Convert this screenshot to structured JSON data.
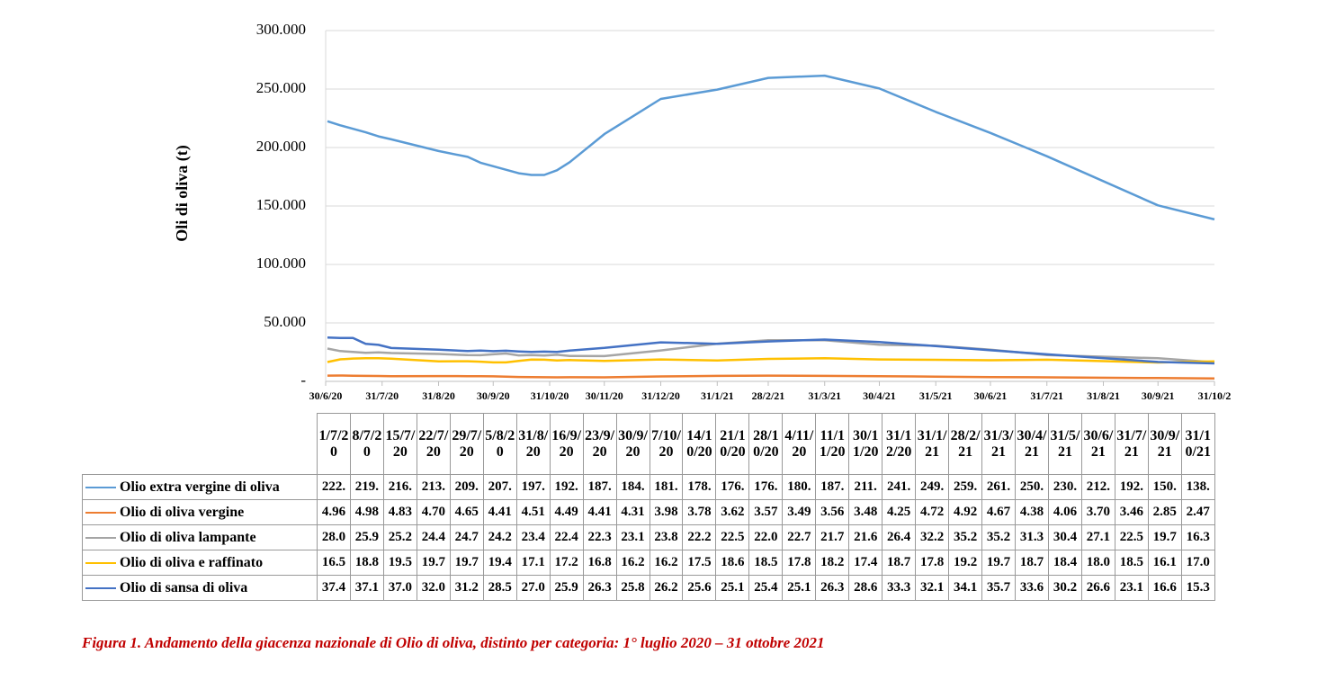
{
  "chart_data": {
    "type": "line",
    "caption": "Figura 1. Andamento della giacenza nazionale di Olio di oliva, distinto per categoria: 1° luglio 2020 – 31 ottobre 2021",
    "ylabel": "Oli di oliva (t)",
    "categories": [
      "1/7/20",
      "8/7/20",
      "15/7/20",
      "22/7/20",
      "29/7/20",
      "5/8/20",
      "31/8/20",
      "16/9/20",
      "23/9/20",
      "30/9/20",
      "7/10/20",
      "14/10/20",
      "21/10/20",
      "28/10/20",
      "4/11/20",
      "11/11/20",
      "30/11/20",
      "31/12/20",
      "31/1/21",
      "28/2/21",
      "31/3/21",
      "30/4/21",
      "31/5/21",
      "30/6/21",
      "31/7/21",
      "30/9/21",
      "31/10/21"
    ],
    "xlim": [
      "2020-06-30",
      "2021-10-31"
    ],
    "xticks": [
      {
        "value": "2020-06-30",
        "label": "30/6/20"
      },
      {
        "value": "2020-07-31",
        "label": "31/7/20"
      },
      {
        "value": "2020-08-31",
        "label": "31/8/20"
      },
      {
        "value": "2020-09-30",
        "label": "30/9/20"
      },
      {
        "value": "2020-10-31",
        "label": "31/10/20"
      },
      {
        "value": "2020-11-30",
        "label": "30/11/20"
      },
      {
        "value": "2020-12-31",
        "label": "31/12/20"
      },
      {
        "value": "2021-01-31",
        "label": "31/1/21"
      },
      {
        "value": "2021-02-28",
        "label": "28/2/21"
      },
      {
        "value": "2021-03-31",
        "label": "31/3/21"
      },
      {
        "value": "2021-04-30",
        "label": "30/4/21"
      },
      {
        "value": "2021-05-31",
        "label": "31/5/21"
      },
      {
        "value": "2021-06-30",
        "label": "30/6/21"
      },
      {
        "value": "2021-07-31",
        "label": "31/7/21"
      },
      {
        "value": "2021-08-31",
        "label": "31/8/21"
      },
      {
        "value": "2021-09-30",
        "label": "30/9/21"
      },
      {
        "value": "2021-10-31",
        "label": "31/10/2"
      }
    ],
    "ylim": [
      0,
      300000
    ],
    "yticks": [
      {
        "value": 0,
        "label": "-"
      },
      {
        "value": 50000,
        "label": "50.000"
      },
      {
        "value": 100000,
        "label": "100.000"
      },
      {
        "value": 150000,
        "label": "150.000"
      },
      {
        "value": 200000,
        "label": "200.000"
      },
      {
        "value": 250000,
        "label": "250.000"
      },
      {
        "value": 300000,
        "label": "300.000"
      }
    ],
    "grid": true,
    "series": [
      {
        "name": "Olio extra vergine di oliva",
        "color": "#5b9bd5",
        "values": [
          222500,
          219000,
          216000,
          213000,
          209500,
          207000,
          197000,
          192000,
          187000,
          184000,
          181000,
          178000,
          176500,
          176500,
          180500,
          187500,
          211500,
          241500,
          249500,
          259500,
          261500,
          250500,
          230500,
          212500,
          192500,
          150500,
          138500
        ],
        "value_labels": [
          "222.",
          "219.",
          "216.",
          "213.",
          "209.",
          "207.",
          "197.",
          "192.",
          "187.",
          "184.",
          "181.",
          "178.",
          "176.",
          "176.",
          "180.",
          "187.",
          "211.",
          "241.",
          "249.",
          "259.",
          "261.",
          "250.",
          "230.",
          "212.",
          "192.",
          "150.",
          "138."
        ]
      },
      {
        "name": "Olio di oliva vergine",
        "color": "#ed7d31",
        "values": [
          4960,
          4980,
          4830,
          4700,
          4650,
          4410,
          4510,
          4490,
          4410,
          4310,
          3980,
          3780,
          3620,
          3570,
          3490,
          3560,
          3480,
          4250,
          4720,
          4920,
          4670,
          4380,
          4060,
          3700,
          3460,
          2850,
          2470
        ],
        "value_labels": [
          "4.96",
          "4.98",
          "4.83",
          "4.70",
          "4.65",
          "4.41",
          "4.51",
          "4.49",
          "4.41",
          "4.31",
          "3.98",
          "3.78",
          "3.62",
          "3.57",
          "3.49",
          "3.56",
          "3.48",
          "4.25",
          "4.72",
          "4.92",
          "4.67",
          "4.38",
          "4.06",
          "3.70",
          "3.46",
          "2.85",
          "2.47"
        ]
      },
      {
        "name": "Olio di oliva lampante",
        "color": "#a5a5a5",
        "values": [
          28050,
          25950,
          25250,
          24450,
          24750,
          24250,
          23450,
          22450,
          22350,
          23150,
          23850,
          22250,
          22550,
          22050,
          22750,
          21750,
          21650,
          26450,
          32250,
          35250,
          35250,
          31350,
          30450,
          27150,
          22550,
          19750,
          16350
        ],
        "value_labels": [
          "28.0",
          "25.9",
          "25.2",
          "24.4",
          "24.7",
          "24.2",
          "23.4",
          "22.4",
          "22.3",
          "23.1",
          "23.8",
          "22.2",
          "22.5",
          "22.0",
          "22.7",
          "21.7",
          "21.6",
          "26.4",
          "32.2",
          "35.2",
          "35.2",
          "31.3",
          "30.4",
          "27.1",
          "22.5",
          "19.7",
          "16.3"
        ]
      },
      {
        "name": "Olio di oliva e raffinato",
        "color": "#ffc000",
        "values": [
          16550,
          18850,
          19550,
          19750,
          19750,
          19450,
          17150,
          17250,
          16850,
          16250,
          16250,
          17550,
          18650,
          18550,
          17850,
          18250,
          17450,
          18750,
          17850,
          19250,
          19750,
          18750,
          18450,
          18050,
          18550,
          16150,
          17050
        ],
        "value_labels": [
          "16.5",
          "18.8",
          "19.5",
          "19.7",
          "19.7",
          "19.4",
          "17.1",
          "17.2",
          "16.8",
          "16.2",
          "16.2",
          "17.5",
          "18.6",
          "18.5",
          "17.8",
          "18.2",
          "17.4",
          "18.7",
          "17.8",
          "19.2",
          "19.7",
          "18.7",
          "18.4",
          "18.0",
          "18.5",
          "16.1",
          "17.0"
        ]
      },
      {
        "name": "Olio di sansa di oliva",
        "color": "#4472c4",
        "values": [
          37450,
          37150,
          37050,
          32050,
          31250,
          28550,
          27050,
          25950,
          26350,
          25850,
          26250,
          25650,
          25150,
          25450,
          25150,
          26350,
          28650,
          33350,
          32150,
          34150,
          35750,
          33650,
          30250,
          26650,
          23150,
          16650,
          15350
        ],
        "value_labels": [
          "37.4",
          "37.1",
          "37.0",
          "32.0",
          "31.2",
          "28.5",
          "27.0",
          "25.9",
          "26.3",
          "25.8",
          "26.2",
          "25.6",
          "25.1",
          "25.4",
          "25.1",
          "26.3",
          "28.6",
          "33.3",
          "32.1",
          "34.1",
          "35.7",
          "33.6",
          "30.2",
          "26.6",
          "23.1",
          "16.6",
          "15.3"
        ]
      }
    ]
  }
}
